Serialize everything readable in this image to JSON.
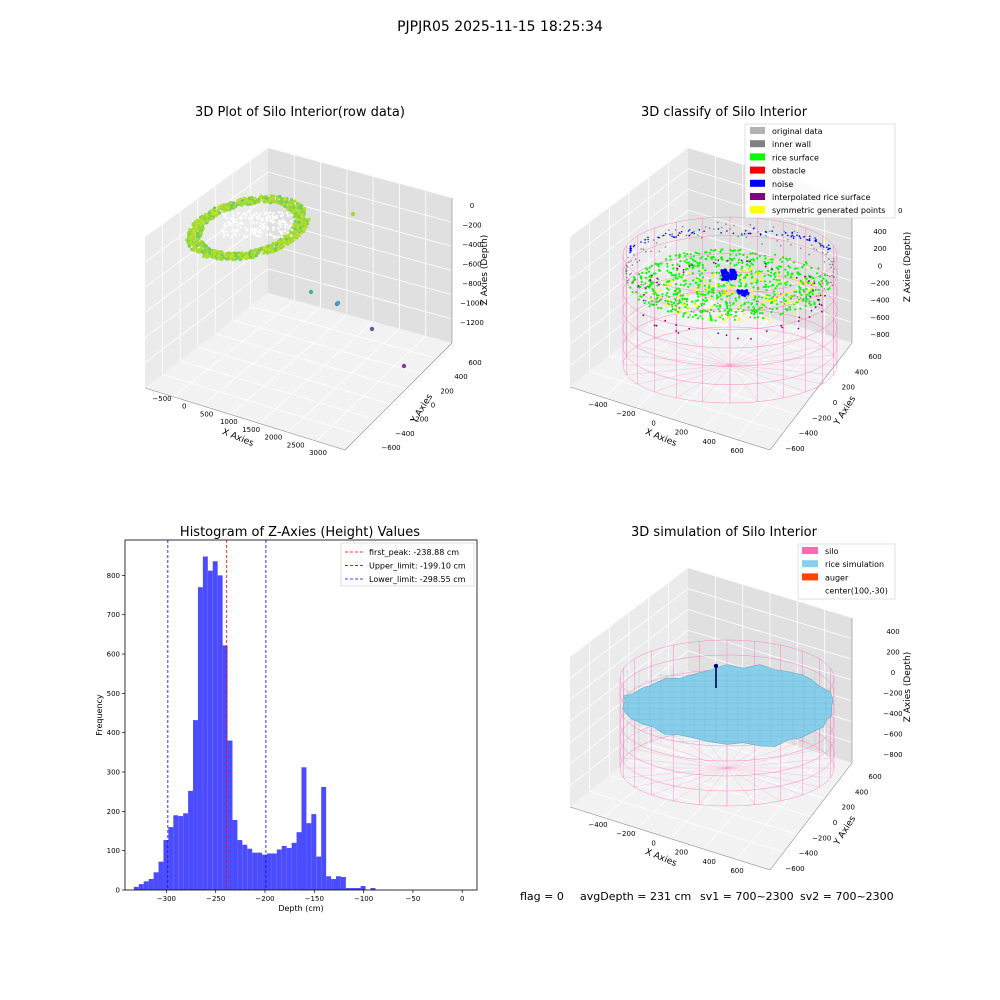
{
  "figure": {
    "suptitle": "PJPJR05 2025-11-15 18:25:34",
    "status_line": {
      "flag": "flag = 0",
      "avg_depth": "avgDepth = 231 cm",
      "sv1": "sv1 = 700~2300",
      "sv2": "sv2 = 700~2300"
    }
  },
  "colors": {
    "original_data": "#b3b3b3",
    "inner_wall": "#808080",
    "rice_surface": "#00ff00",
    "obstacle": "#ff0000",
    "noise": "#0000ff",
    "interpolated_rice_surface": "#800080",
    "symmetric_generated_points": "#ffff00",
    "silo": "#ff69b4",
    "rice_simulation": "#87ceeb",
    "auger": "#ff4500",
    "histogram_bar": "#4c4cff",
    "peak_line": "#ff0000",
    "limit_line": "#0000ff",
    "pane": "#ebebeb"
  },
  "chart_data": [
    {
      "type": "scatter",
      "projection": "3d",
      "title": "3D Plot of Silo Interior(row data)",
      "xlabel": "X Axies",
      "ylabel": "Y Axies",
      "zlabel": "Z Axies (Depth)",
      "xticks": [
        "−500",
        "0",
        "500",
        "1000",
        "1500",
        "2000",
        "2500",
        "3000"
      ],
      "yticks": [
        "600",
        "400",
        "200",
        "0",
        "−200",
        "−400",
        "−600"
      ],
      "zticks": [
        "0",
        "−200",
        "−400",
        "−600",
        "−800",
        "−1000",
        "−1200"
      ],
      "xlim": [
        -650,
        3300
      ],
      "ylim": [
        -650,
        700
      ],
      "zlim": [
        -1350,
        100
      ],
      "grid": true,
      "series": [
        {
          "description": "dense ring of points near the silo",
          "x_range": [
            -450,
            700
          ],
          "y_range": [
            -600,
            600
          ],
          "z_range": [
            -300,
            -200
          ]
        }
      ],
      "outliers": [
        {
          "x": 1300,
          "y": -100,
          "z": -300
        },
        {
          "x": 1450,
          "y": 0,
          "z": -1000
        },
        {
          "x": 1750,
          "y": 0,
          "z": -1030
        },
        {
          "x": 2200,
          "y": -100,
          "z": -1200
        },
        {
          "x": 2900,
          "y": -200,
          "z": -1270
        }
      ]
    },
    {
      "type": "scatter",
      "projection": "3d",
      "title": "3D classify of Silo Interior",
      "xlabel": "X Axies",
      "ylabel": "Y Axies",
      "zlabel": "Z Axies (Depth)",
      "xticks": [
        "−400",
        "−200",
        "0",
        "200",
        "400",
        "600"
      ],
      "yticks": [
        "600",
        "400",
        "200",
        "0",
        "−200",
        "−400",
        "−600"
      ],
      "zticks": [
        "400",
        "200",
        "0",
        "−200",
        "−400",
        "−600",
        "−800"
      ],
      "xlim": [
        -550,
        700
      ],
      "ylim": [
        -650,
        700
      ],
      "zlim": [
        -900,
        500
      ],
      "grid": true,
      "legend_position": "top-right",
      "legend": [
        {
          "label": "original data",
          "color_key": "original_data"
        },
        {
          "label": "inner wall",
          "color_key": "inner_wall"
        },
        {
          "label": "rice surface",
          "color_key": "rice_surface"
        },
        {
          "label": "obstacle",
          "color_key": "obstacle"
        },
        {
          "label": "noise",
          "color_key": "noise"
        },
        {
          "label": "interpolated rice surface",
          "color_key": "interpolated_rice_surface"
        },
        {
          "label": "symmetric generated points",
          "color_key": "symmetric_generated_points"
        }
      ],
      "top_clipped_tick": "0"
    },
    {
      "type": "bar",
      "title": "Histogram of Z-Axies (Height) Values",
      "xlabel": "Depth (cm)",
      "ylabel": "Frequency",
      "xticks": [
        "−300",
        "−250",
        "−200",
        "−150",
        "−100",
        "−50",
        "0"
      ],
      "yticks": [
        "0",
        "100",
        "200",
        "300",
        "400",
        "500",
        "600",
        "700",
        "800"
      ],
      "xlim": [
        -342,
        15
      ],
      "ylim": [
        0,
        890
      ],
      "bin_start": -333,
      "bin_width": 5,
      "values": [
        8,
        15,
        22,
        28,
        45,
        72,
        127,
        160,
        190,
        188,
        195,
        252,
        432,
        770,
        848,
        812,
        836,
        800,
        622,
        380,
        178,
        127,
        115,
        105,
        95,
        95,
        90,
        93,
        93,
        103,
        112,
        107,
        120,
        147,
        312,
        170,
        193,
        85,
        262,
        35,
        28,
        35,
        33,
        5,
        5,
        5,
        10,
        0,
        5
      ],
      "legend_position": "top-right",
      "reference_lines": [
        {
          "label": "first_peak: -238.88 cm",
          "x": -238.88,
          "color_key": "peak_line"
        },
        {
          "label": "Upper_limit: -199.10 cm",
          "x": -199.1,
          "color_key": "limit_line"
        },
        {
          "label": "Lower_limit: -298.55 cm",
          "x": -298.55,
          "color_key": "limit_line"
        }
      ]
    },
    {
      "type": "surface",
      "projection": "3d",
      "title": "3D simulation of Silo Interior",
      "xlabel": "X Axies",
      "ylabel": "Y Axies",
      "zlabel": "Z Axies (Depth)",
      "xticks": [
        "−400",
        "−200",
        "0",
        "200",
        "400",
        "600"
      ],
      "yticks": [
        "600",
        "400",
        "200",
        "0",
        "−200",
        "−400",
        "−600"
      ],
      "zticks": [
        "400",
        "200",
        "0",
        "−200",
        "−400",
        "−600",
        "−800"
      ],
      "xlim": [
        -550,
        700
      ],
      "ylim": [
        -650,
        700
      ],
      "zlim": [
        -900,
        500
      ],
      "grid": true,
      "legend_position": "top-right",
      "legend": [
        {
          "label": "silo",
          "color_key": "silo"
        },
        {
          "label": "rice simulation",
          "color_key": "rice_simulation"
        },
        {
          "label": "auger",
          "color_key": "auger"
        },
        {
          "label": "center(100,-30)",
          "color_key": ""
        }
      ]
    }
  ]
}
